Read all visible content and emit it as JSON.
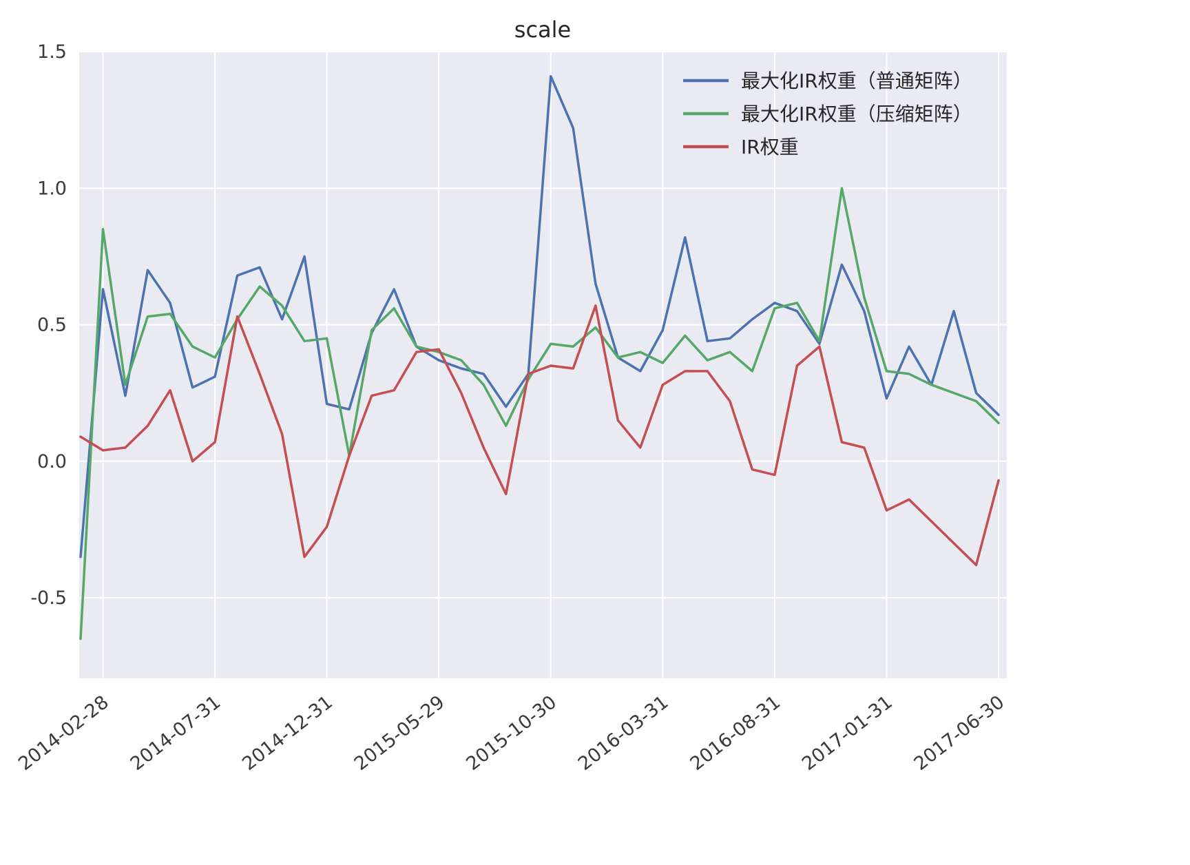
{
  "chart": {
    "title": "scale",
    "plot_background": "#EAEAF2",
    "grid_color": "#FFFFFF",
    "text_color": "#3a3a3a",
    "chart_data": {
      "type": "line",
      "x_point_count": 42,
      "x_description": "monthly observations from 2014-01 to 2017-06",
      "x_ticks": [
        {
          "index": 1,
          "label": "2014-02-28"
        },
        {
          "index": 6,
          "label": "2014-07-31"
        },
        {
          "index": 11,
          "label": "2014-12-31"
        },
        {
          "index": 16,
          "label": "2015-05-29"
        },
        {
          "index": 21,
          "label": "2015-10-30"
        },
        {
          "index": 26,
          "label": "2016-03-31"
        },
        {
          "index": 31,
          "label": "2016-08-31"
        },
        {
          "index": 36,
          "label": "2017-01-31"
        },
        {
          "index": 41,
          "label": "2017-06-30"
        }
      ],
      "y_ticks": [
        {
          "value": 1.5,
          "label": "1.5"
        },
        {
          "value": 1.0,
          "label": "1.0"
        },
        {
          "value": 0.5,
          "label": "0.5"
        },
        {
          "value": 0.0,
          "label": "0.0"
        },
        {
          "value": -0.5,
          "label": "-0.5"
        }
      ],
      "ylim": [
        -0.795,
        1.5
      ],
      "grid": true,
      "legend_position": "upper right",
      "series": [
        {
          "name": "最大化IR权重（普通矩阵）",
          "color": "#4C72B0",
          "values": [
            -0.35,
            0.63,
            0.24,
            0.7,
            0.58,
            0.27,
            0.31,
            0.68,
            0.71,
            0.52,
            0.75,
            0.21,
            0.19,
            0.47,
            0.63,
            0.42,
            0.37,
            0.34,
            0.32,
            0.2,
            0.32,
            1.41,
            1.22,
            0.65,
            0.38,
            0.33,
            0.48,
            0.82,
            0.44,
            0.45,
            0.52,
            0.58,
            0.55,
            0.43,
            0.72,
            0.55,
            0.23,
            0.42,
            0.28,
            0.55,
            0.25,
            0.17
          ]
        },
        {
          "name": "最大化IR权重（压缩矩阵）",
          "color": "#55A868",
          "values": [
            -0.65,
            0.85,
            0.28,
            0.53,
            0.54,
            0.42,
            0.38,
            0.52,
            0.64,
            0.57,
            0.44,
            0.45,
            0.02,
            0.48,
            0.56,
            0.42,
            0.4,
            0.37,
            0.28,
            0.13,
            0.3,
            0.43,
            0.42,
            0.49,
            0.38,
            0.4,
            0.36,
            0.46,
            0.37,
            0.4,
            0.33,
            0.56,
            0.58,
            0.44,
            1.0,
            0.6,
            0.33,
            0.32,
            0.28,
            0.25,
            0.22,
            0.14
          ]
        },
        {
          "name": "IR权重",
          "color": "#C44E52",
          "values": [
            0.09,
            0.04,
            0.05,
            0.13,
            0.26,
            0.0,
            0.07,
            0.53,
            0.32,
            0.1,
            -0.35,
            -0.24,
            0.02,
            0.24,
            0.26,
            0.4,
            0.41,
            0.25,
            0.05,
            -0.12,
            0.32,
            0.35,
            0.34,
            0.57,
            0.15,
            0.05,
            0.28,
            0.33,
            0.33,
            0.22,
            -0.03,
            -0.05,
            0.35,
            0.42,
            0.07,
            0.05,
            -0.18,
            -0.14,
            -0.22,
            -0.3,
            -0.38,
            -0.07
          ]
        }
      ]
    }
  }
}
